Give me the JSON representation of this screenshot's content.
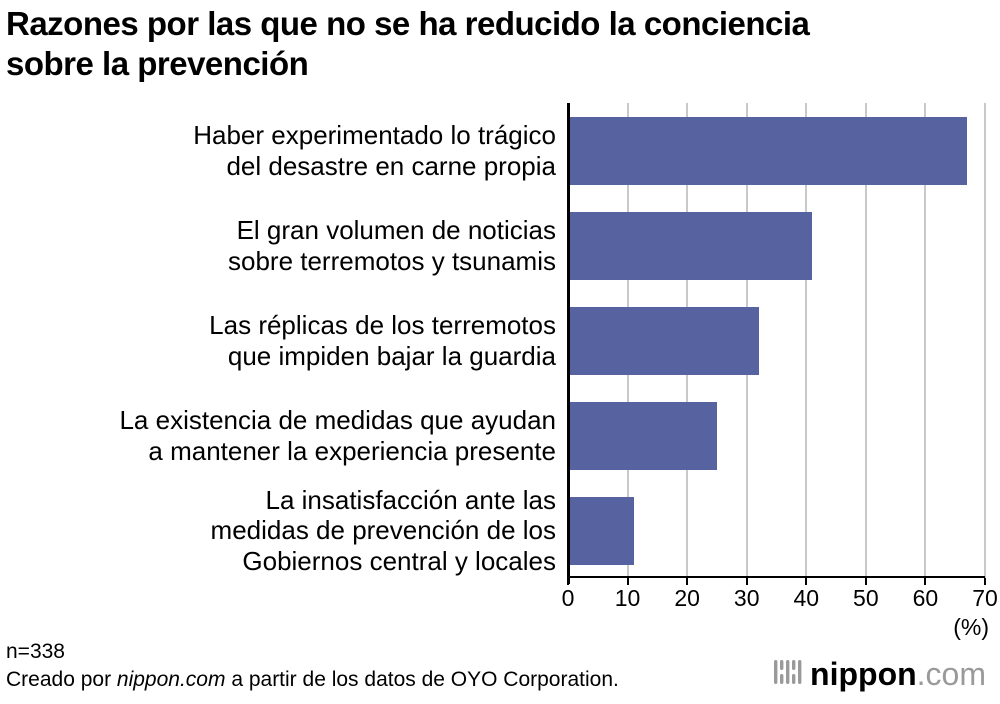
{
  "title": "Razones por las que no se ha reducido la conciencia\nsobre la prevención",
  "chart_data": {
    "type": "bar",
    "orientation": "horizontal",
    "title": "Razones por las que no se ha reducido la conciencia sobre la prevención",
    "categories": [
      "Haber experimentado lo trágico\ndel desastre en carne propia",
      "El gran volumen de noticias\nsobre terremotos y tsunamis",
      "Las réplicas de los terremotos\nque impiden bajar la guardia",
      "La existencia de medidas que ayudan\na mantener la experiencia presente",
      "La insatisfacción ante las\nmedidas de prevención de los\nGobiernos central y locales"
    ],
    "values": [
      67,
      41,
      32,
      25,
      11
    ],
    "xlabel": "(%)",
    "ylabel": "",
    "xlim": [
      0,
      70
    ],
    "xticks": [
      0,
      10,
      20,
      30,
      40,
      50,
      60,
      70
    ],
    "grid": true,
    "legend": false,
    "bar_color": "#5663A0",
    "grid_color": "#c9c9c9",
    "axis_color": "#000000"
  },
  "x_unit_label": "(%)",
  "footer": {
    "sample_size": "n=338",
    "credit_prefix": "Creado por ",
    "credit_italic": "nippon.com",
    "credit_suffix": " a partir de los datos de OYO Corporation."
  },
  "logo": {
    "name": "nippon",
    "tld": ".com"
  }
}
